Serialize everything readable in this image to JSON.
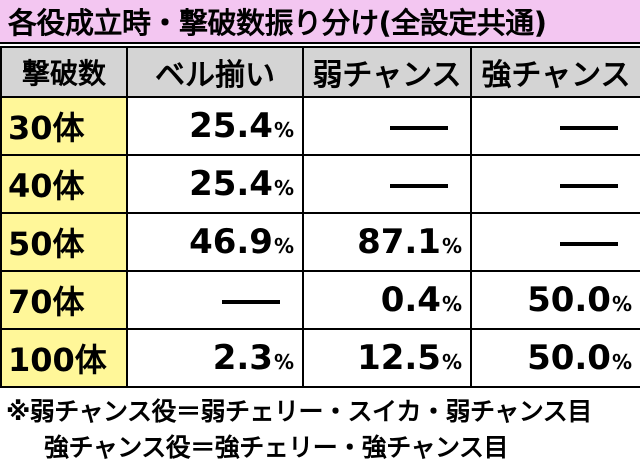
{
  "title": "各役成立時・撃破数振り分け(全設定共通)",
  "table": {
    "corner": "撃破数",
    "columns": [
      "ベル揃い",
      "弱チャンス",
      "強チャンス"
    ],
    "rows": [
      {
        "label": "30体",
        "cells": [
          {
            "value": "25.4",
            "unit": "%"
          },
          {
            "value": "—",
            "unit": ""
          },
          {
            "value": "—",
            "unit": ""
          }
        ]
      },
      {
        "label": "40体",
        "cells": [
          {
            "value": "25.4",
            "unit": "%"
          },
          {
            "value": "—",
            "unit": ""
          },
          {
            "value": "—",
            "unit": ""
          }
        ]
      },
      {
        "label": "50体",
        "cells": [
          {
            "value": "46.9",
            "unit": "%"
          },
          {
            "value": "87.1",
            "unit": "%"
          },
          {
            "value": "—",
            "unit": ""
          }
        ]
      },
      {
        "label": "70体",
        "cells": [
          {
            "value": "—",
            "unit": ""
          },
          {
            "value": "0.4",
            "unit": "%"
          },
          {
            "value": "50.0",
            "unit": "%"
          }
        ]
      },
      {
        "label": "100体",
        "cells": [
          {
            "value": "2.3",
            "unit": "%"
          },
          {
            "value": "12.5",
            "unit": "%"
          },
          {
            "value": "50.0",
            "unit": "%"
          }
        ]
      }
    ]
  },
  "notes": [
    "※弱チャンス役＝弱チェリー・スイカ・弱チャンス目",
    "強チャンス役＝強チェリー・強チャンス目"
  ]
}
